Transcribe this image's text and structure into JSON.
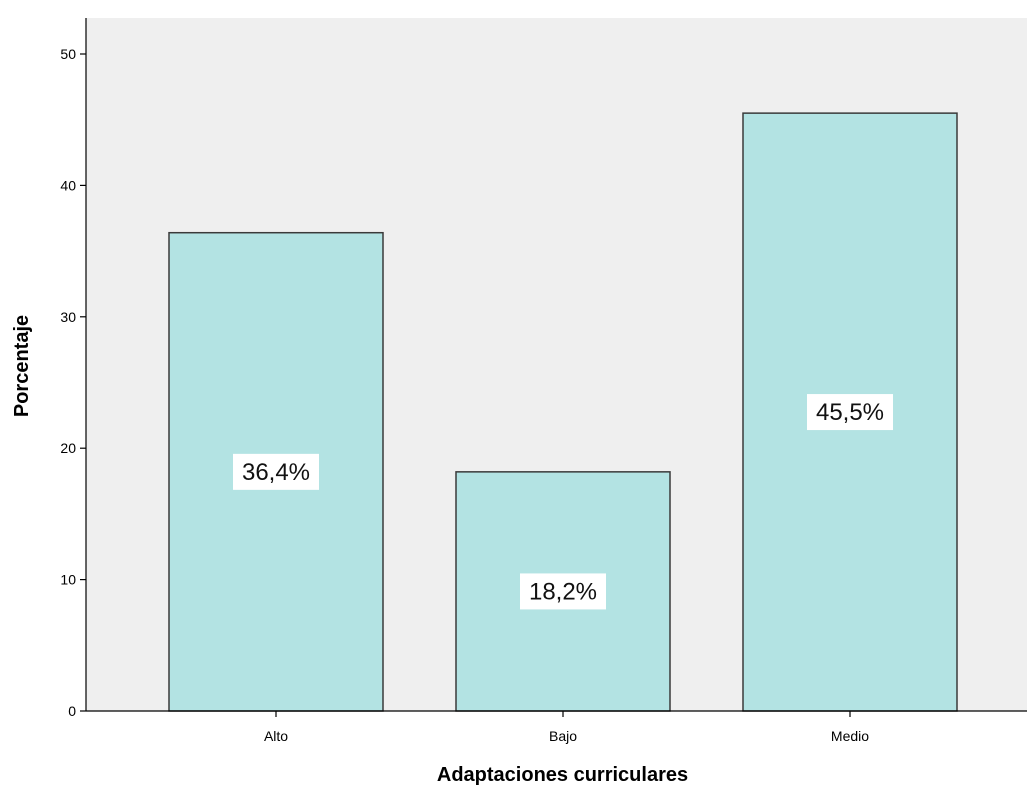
{
  "chart_data": {
    "type": "bar",
    "title": "",
    "xlabel": "Adaptaciones curriculares",
    "ylabel": "Porcentaje",
    "categories": [
      "Alto",
      "Bajo",
      "Medio"
    ],
    "values": [
      36.4,
      18.2,
      45.5
    ],
    "data_labels": [
      "36,4%",
      "18,2%",
      "45,5%"
    ],
    "ylim": [
      0,
      53
    ],
    "yticks": [
      0,
      10,
      20,
      30,
      40,
      50
    ],
    "ytick_labels": [
      "0",
      "10",
      "20",
      "30",
      "40",
      "50"
    ],
    "grid": false,
    "legend": "none",
    "colors": {
      "bar_fill": "#b3e3e3",
      "bar_stroke": "#3a3a3a",
      "plot_background": "#efefef",
      "label_background": "#ffffff"
    }
  }
}
